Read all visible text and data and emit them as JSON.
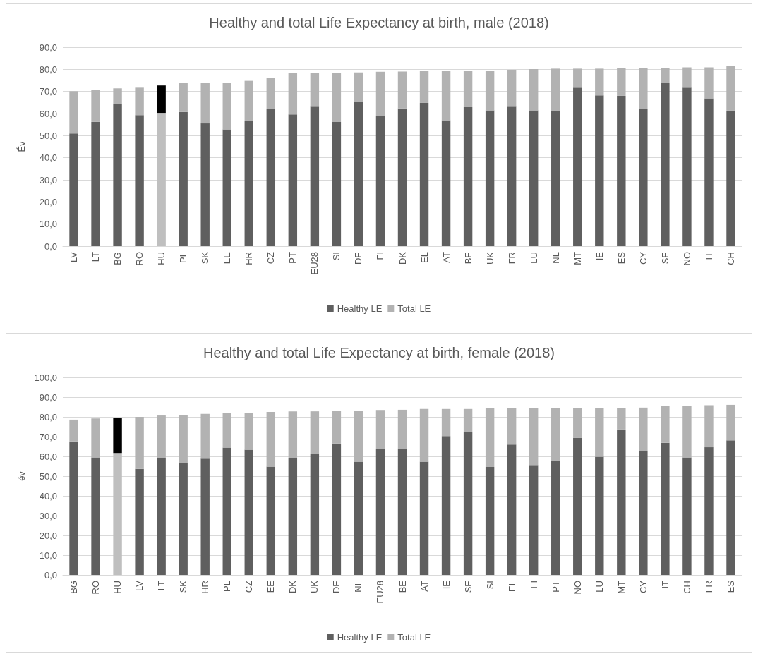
{
  "chart_data": [
    {
      "type": "bar",
      "title": "Healthy and total Life Expectancy at birth, male (2018)",
      "ylabel": "Év",
      "stacked": true,
      "grid": "y",
      "legend": "bottom",
      "categories": [
        "LV",
        "LT",
        "BG",
        "RO",
        "HU",
        "PL",
        "SK",
        "EE",
        "HR",
        "CZ",
        "PT",
        "EU28",
        "SI",
        "DE",
        "FI",
        "DK",
        "EL",
        "AT",
        "BE",
        "UK",
        "FR",
        "LU",
        "NL",
        "MT",
        "IE",
        "ES",
        "CY",
        "SE",
        "NO",
        "IT",
        "CH"
      ],
      "ylim": [
        0,
        90
      ],
      "yticks": [
        {
          "value": 0,
          "label": "0,0"
        },
        {
          "value": 10,
          "label": "10,0"
        },
        {
          "value": 20,
          "label": "20,0"
        },
        {
          "value": 30,
          "label": "30,0"
        },
        {
          "value": 40,
          "label": "40,0"
        },
        {
          "value": 50,
          "label": "50,0"
        },
        {
          "value": 60,
          "label": "60,0"
        },
        {
          "value": 70,
          "label": "70,0"
        },
        {
          "value": 80,
          "label": "80,0"
        },
        {
          "value": 90,
          "label": "90,0"
        }
      ],
      "series": [
        {
          "name": "Healthy LE",
          "color": "#5f5f5f",
          "colors": [
            "#5f5f5f",
            "#5f5f5f",
            "#5f5f5f",
            "#5f5f5f",
            "#bfbfbf",
            "#5f5f5f",
            "#5f5f5f",
            "#5f5f5f",
            "#5f5f5f",
            "#5f5f5f",
            "#5f5f5f",
            "#5f5f5f",
            "#5f5f5f",
            "#5f5f5f",
            "#5f5f5f",
            "#5f5f5f",
            "#5f5f5f",
            "#5f5f5f",
            "#5f5f5f",
            "#5f5f5f",
            "#5f5f5f",
            "#5f5f5f",
            "#5f5f5f",
            "#5f5f5f",
            "#5f5f5f",
            "#5f5f5f",
            "#5f5f5f",
            "#5f5f5f",
            "#5f5f5f",
            "#5f5f5f",
            "#5f5f5f"
          ],
          "values": [
            51.0,
            56.2,
            64.2,
            59.3,
            60.3,
            60.7,
            55.5,
            52.8,
            56.6,
            62.0,
            59.6,
            63.4,
            56.2,
            65.1,
            58.9,
            62.3,
            64.8,
            57.0,
            63.1,
            61.4,
            63.4,
            61.4,
            61.1,
            71.7,
            68.2,
            68.0,
            62.1,
            73.8,
            71.7,
            66.9,
            61.3
          ]
        },
        {
          "name": "Total LE",
          "color": "#b2b2b2",
          "colors": [
            "#b2b2b2",
            "#b2b2b2",
            "#b2b2b2",
            "#b2b2b2",
            "#000000",
            "#b2b2b2",
            "#b2b2b2",
            "#b2b2b2",
            "#b2b2b2",
            "#b2b2b2",
            "#b2b2b2",
            "#b2b2b2",
            "#b2b2b2",
            "#b2b2b2",
            "#b2b2b2",
            "#b2b2b2",
            "#b2b2b2",
            "#b2b2b2",
            "#b2b2b2",
            "#b2b2b2",
            "#b2b2b2",
            "#b2b2b2",
            "#b2b2b2",
            "#b2b2b2",
            "#b2b2b2",
            "#b2b2b2",
            "#b2b2b2",
            "#b2b2b2",
            "#b2b2b2",
            "#b2b2b2",
            "#b2b2b2"
          ],
          "values": [
            19.1,
            14.6,
            7.2,
            12.4,
            12.4,
            13.1,
            18.3,
            21.0,
            18.2,
            14.1,
            18.7,
            14.9,
            22.1,
            13.5,
            20.0,
            16.7,
            14.5,
            22.3,
            16.2,
            17.9,
            16.4,
            18.7,
            19.2,
            8.6,
            12.1,
            12.6,
            18.5,
            6.8,
            9.2,
            14.0,
            20.3
          ]
        }
      ]
    },
    {
      "type": "bar",
      "title": "Healthy and total Life Expectancy at birth, female (2018)",
      "ylabel": "év",
      "stacked": true,
      "grid": "y",
      "legend": "bottom",
      "categories": [
        "BG",
        "RO",
        "HU",
        "LV",
        "LT",
        "SK",
        "HR",
        "PL",
        "CZ",
        "EE",
        "DK",
        "UK",
        "DE",
        "NL",
        "EU28",
        "BE",
        "AT",
        "IE",
        "SE",
        "SI",
        "EL",
        "FI",
        "PT",
        "NO",
        "LU",
        "MT",
        "CY",
        "IT",
        "CH",
        "FR",
        "ES"
      ],
      "ylim": [
        0,
        100
      ],
      "yticks": [
        {
          "value": 0,
          "label": "0,0"
        },
        {
          "value": 10,
          "label": "10,0"
        },
        {
          "value": 20,
          "label": "20,0"
        },
        {
          "value": 30,
          "label": "30,0"
        },
        {
          "value": 40,
          "label": "40,0"
        },
        {
          "value": 50,
          "label": "50,0"
        },
        {
          "value": 60,
          "label": "60,0"
        },
        {
          "value": 70,
          "label": "70,0"
        },
        {
          "value": 80,
          "label": "80,0"
        },
        {
          "value": 90,
          "label": "90,0"
        },
        {
          "value": 100,
          "label": "100,0"
        }
      ],
      "series": [
        {
          "name": "Healthy LE",
          "color": "#5f5f5f",
          "colors": [
            "#5f5f5f",
            "#5f5f5f",
            "#bfbfbf",
            "#5f5f5f",
            "#5f5f5f",
            "#5f5f5f",
            "#5f5f5f",
            "#5f5f5f",
            "#5f5f5f",
            "#5f5f5f",
            "#5f5f5f",
            "#5f5f5f",
            "#5f5f5f",
            "#5f5f5f",
            "#5f5f5f",
            "#5f5f5f",
            "#5f5f5f",
            "#5f5f5f",
            "#5f5f5f",
            "#5f5f5f",
            "#5f5f5f",
            "#5f5f5f",
            "#5f5f5f",
            "#5f5f5f",
            "#5f5f5f",
            "#5f5f5f",
            "#5f5f5f",
            "#5f5f5f",
            "#5f5f5f",
            "#5f5f5f",
            "#5f5f5f"
          ],
          "values": [
            67.6,
            59.5,
            61.7,
            53.7,
            59.2,
            56.7,
            58.8,
            64.5,
            63.4,
            54.8,
            59.2,
            61.1,
            66.5,
            57.3,
            63.9,
            63.9,
            57.3,
            70.3,
            72.2,
            54.6,
            66.0,
            55.6,
            57.6,
            69.3,
            59.8,
            73.6,
            62.7,
            66.9,
            59.5,
            64.6,
            68.1
          ]
        },
        {
          "name": "Total LE",
          "color": "#b2b2b2",
          "colors": [
            "#b2b2b2",
            "#b2b2b2",
            "#000000",
            "#b2b2b2",
            "#b2b2b2",
            "#b2b2b2",
            "#b2b2b2",
            "#b2b2b2",
            "#b2b2b2",
            "#b2b2b2",
            "#b2b2b2",
            "#b2b2b2",
            "#b2b2b2",
            "#b2b2b2",
            "#b2b2b2",
            "#b2b2b2",
            "#b2b2b2",
            "#b2b2b2",
            "#b2b2b2",
            "#b2b2b2",
            "#b2b2b2",
            "#b2b2b2",
            "#b2b2b2",
            "#b2b2b2",
            "#b2b2b2",
            "#b2b2b2",
            "#b2b2b2",
            "#b2b2b2",
            "#b2b2b2",
            "#b2b2b2",
            "#b2b2b2"
          ],
          "values": [
            11.0,
            19.7,
            17.9,
            26.3,
            21.5,
            24.0,
            22.7,
            17.3,
            18.7,
            27.7,
            23.6,
            21.7,
            16.6,
            25.8,
            19.6,
            19.7,
            26.7,
            13.7,
            11.8,
            29.8,
            18.4,
            28.8,
            26.8,
            15.1,
            24.6,
            10.8,
            22.0,
            18.6,
            26.0,
            21.3,
            18.0
          ]
        }
      ]
    }
  ]
}
